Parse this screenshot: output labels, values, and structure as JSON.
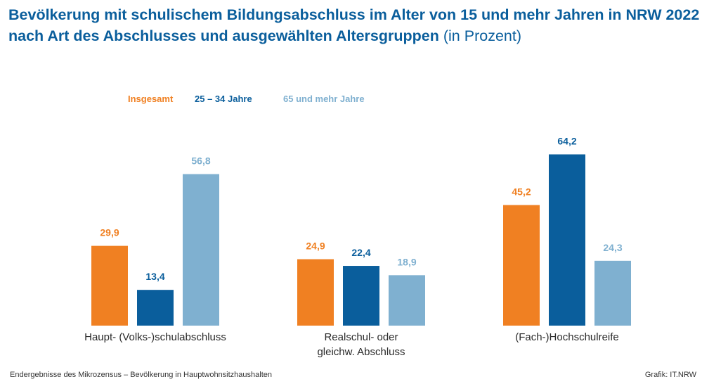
{
  "title": {
    "main": "Bevölkerung mit schulischem Bildungsabschluss im Alter von 15 und mehr Jahren in NRW 2022 nach Art des Abschlusses und ausgewählten Altersgruppen",
    "unit": "(in Prozent)"
  },
  "footer": {
    "source": "Endergebnisse des Mikrozensus – Bevölkerung in Hauptwohnsitzhaushalten",
    "credit": "Grafik: IT.NRW"
  },
  "colors": {
    "title": "#0a5e9c",
    "insgesamt": "#f08022",
    "age_25_34": "#0a5e9c",
    "age_65_plus": "#7fb0d0"
  },
  "chart_data": {
    "type": "bar",
    "categories": [
      "Haupt- (Volks-)schulabschluss",
      "Realschul- oder gleichw. Abschluss",
      "(Fach-)Hochschulreife"
    ],
    "category_lines": [
      [
        "Haupt- (Volks-)schulabschluss"
      ],
      [
        "Realschul- oder",
        "gleichw. Abschluss"
      ],
      [
        "(Fach-)Hochschulreife"
      ]
    ],
    "series": [
      {
        "name": "Insgesamt",
        "values": [
          29.9,
          24.9,
          45.2
        ],
        "labels": [
          "29,9",
          "24,9",
          "45,2"
        ],
        "color": "#f08022"
      },
      {
        "name": "25 – 34 Jahre",
        "values": [
          13.4,
          22.4,
          64.2
        ],
        "labels": [
          "13,4",
          "22,4",
          "64,2"
        ],
        "color": "#0a5e9c"
      },
      {
        "name": "65 und mehr Jahre",
        "values": [
          56.8,
          18.9,
          24.3
        ],
        "labels": [
          "56,8",
          "18,9",
          "24,3"
        ],
        "color": "#7fb0d0"
      }
    ],
    "legend_position": "top-left",
    "grid": false,
    "axes_visible": false
  }
}
